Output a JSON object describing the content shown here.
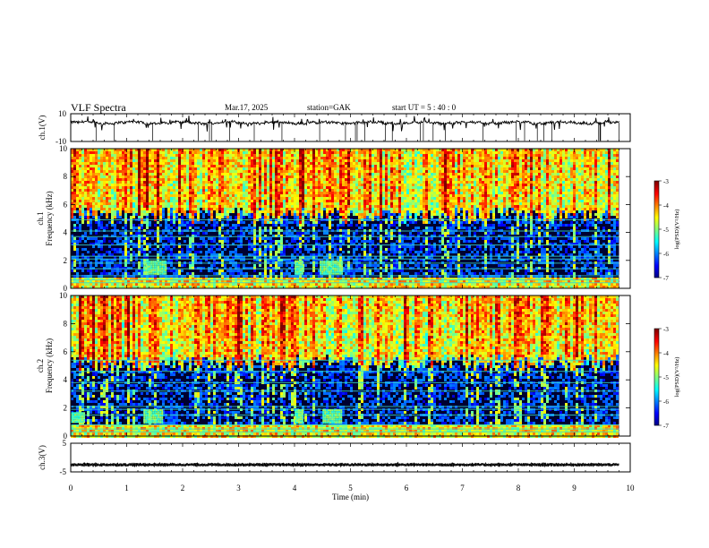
{
  "header": {
    "title": "VLF  Spectra",
    "date": "Mar.17, 2025",
    "station": "station=GAK",
    "start": "start  UT  =    5  : 40 : 0"
  },
  "chart_data": [
    {
      "type": "line",
      "panel": "ch1-waveform",
      "ylabel": "ch.1(V)",
      "ylim": [
        -10,
        10
      ],
      "yticks": [
        "10",
        "-10"
      ],
      "baseline": 3.5
    },
    {
      "type": "heatmap",
      "panel": "ch1-spectrogram",
      "ylabel": "ch.1\nFrequency  (kHz)",
      "ylabel_lines": [
        "ch.1",
        "Frequency  (kHz)"
      ],
      "ylim": [
        0,
        10
      ],
      "yticks": [
        "0",
        "2",
        "4",
        "6",
        "8",
        "10"
      ],
      "colorbar": {
        "label": "log(PSD)(V²/Hz)",
        "range": [
          -7,
          -3
        ],
        "ticks": [
          "-3",
          "-4",
          "-5",
          "-6",
          "-7"
        ]
      },
      "lines_khz": [
        0.4,
        0.6,
        0.9,
        1.4,
        1.8,
        2.1,
        2.3,
        3.1,
        3.7,
        4.1,
        4.9
      ],
      "bursts": [
        {
          "t_min": 1.3,
          "t_max": 1.7,
          "f_min": 1.1,
          "f_max": 2.0
        },
        {
          "t_min": 4.0,
          "t_max": 4.15,
          "f_min": 1.1,
          "f_max": 2.0
        },
        {
          "t_min": 4.45,
          "t_max": 4.85,
          "f_min": 1.1,
          "f_max": 2.0
        }
      ]
    },
    {
      "type": "heatmap",
      "panel": "ch2-spectrogram",
      "ylabel": "ch.2\nFrequency  (kHz)",
      "ylabel_lines": [
        "ch.2",
        "Frequency  (kHz)"
      ],
      "ylim": [
        0,
        10
      ],
      "yticks": [
        "0",
        "2",
        "4",
        "6",
        "8",
        "10"
      ],
      "colorbar": {
        "label": "log(PSD)(V²/Hz)",
        "range": [
          -7,
          -3
        ],
        "ticks": [
          "-3",
          "-4",
          "-5",
          "-6",
          "-7"
        ]
      },
      "lines_khz": [
        0.3,
        0.5,
        0.8,
        1.5,
        1.9,
        2.1,
        3.2,
        3.8,
        4.6,
        5.4
      ],
      "bursts": [
        {
          "t_min": 0.0,
          "t_max": 0.25,
          "f_min": 1.0,
          "f_max": 1.7
        },
        {
          "t_min": 1.3,
          "t_max": 1.65,
          "f_min": 0.9,
          "f_max": 1.9
        },
        {
          "t_min": 4.0,
          "t_max": 4.15,
          "f_min": 0.9,
          "f_max": 1.9
        },
        {
          "t_min": 4.5,
          "t_max": 4.85,
          "f_min": 0.9,
          "f_max": 1.9
        }
      ]
    },
    {
      "type": "line",
      "panel": "ch3-waveform",
      "ylabel": "ch.3(V)",
      "ylim": [
        -5,
        5
      ],
      "yticks": [
        "5",
        "-5"
      ],
      "baseline": -2.5
    }
  ],
  "xaxis": {
    "label": "Time  (min)",
    "range": [
      0,
      10
    ],
    "ticks": [
      "0",
      "1",
      "2",
      "3",
      "4",
      "5",
      "6",
      "7",
      "8",
      "9",
      "10"
    ],
    "data_end": 9.8
  },
  "colors": {
    "black": "#000000",
    "grid": "#808080"
  }
}
